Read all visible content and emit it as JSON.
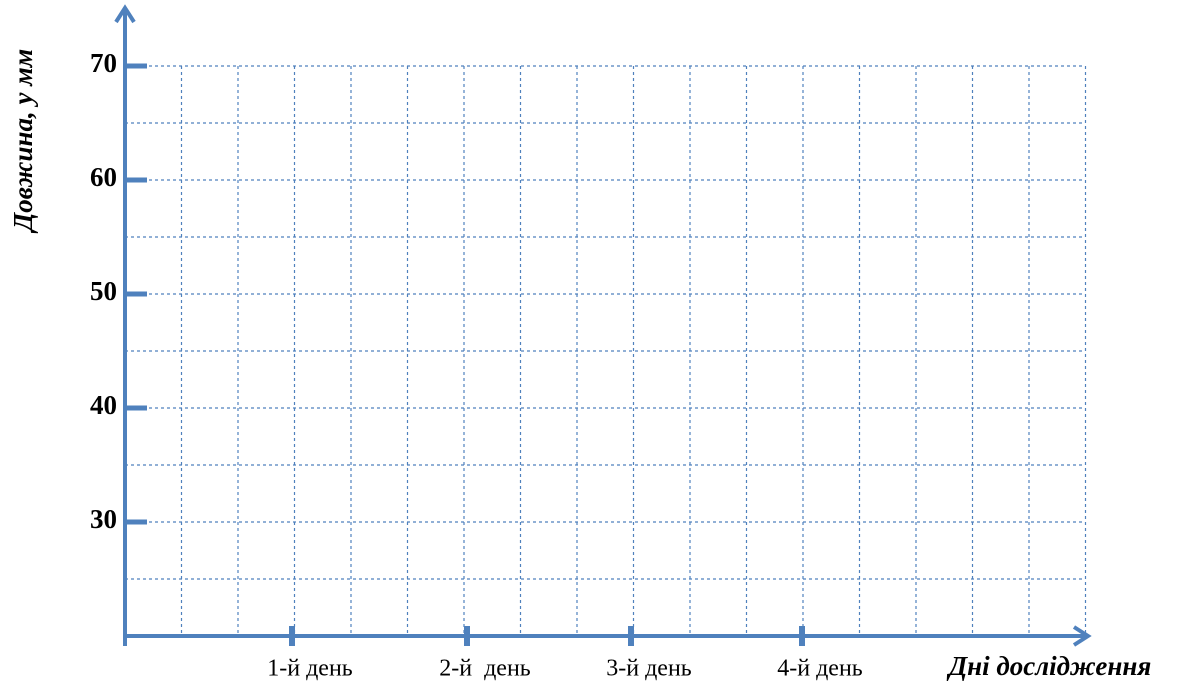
{
  "chart_data": {
    "type": "line",
    "y_label": "Довжина, у мм",
    "x_label": "Дні дослідження",
    "categories": [
      "1-й день",
      "2-й  день",
      "3-й день",
      "4-й день"
    ],
    "series": [],
    "ylim": [
      20,
      70
    ],
    "yticks": [
      30,
      40,
      50,
      60,
      70
    ],
    "minor_yticks": [
      25,
      35,
      45,
      55,
      65
    ],
    "grid": true,
    "color": "#4f81bd"
  }
}
